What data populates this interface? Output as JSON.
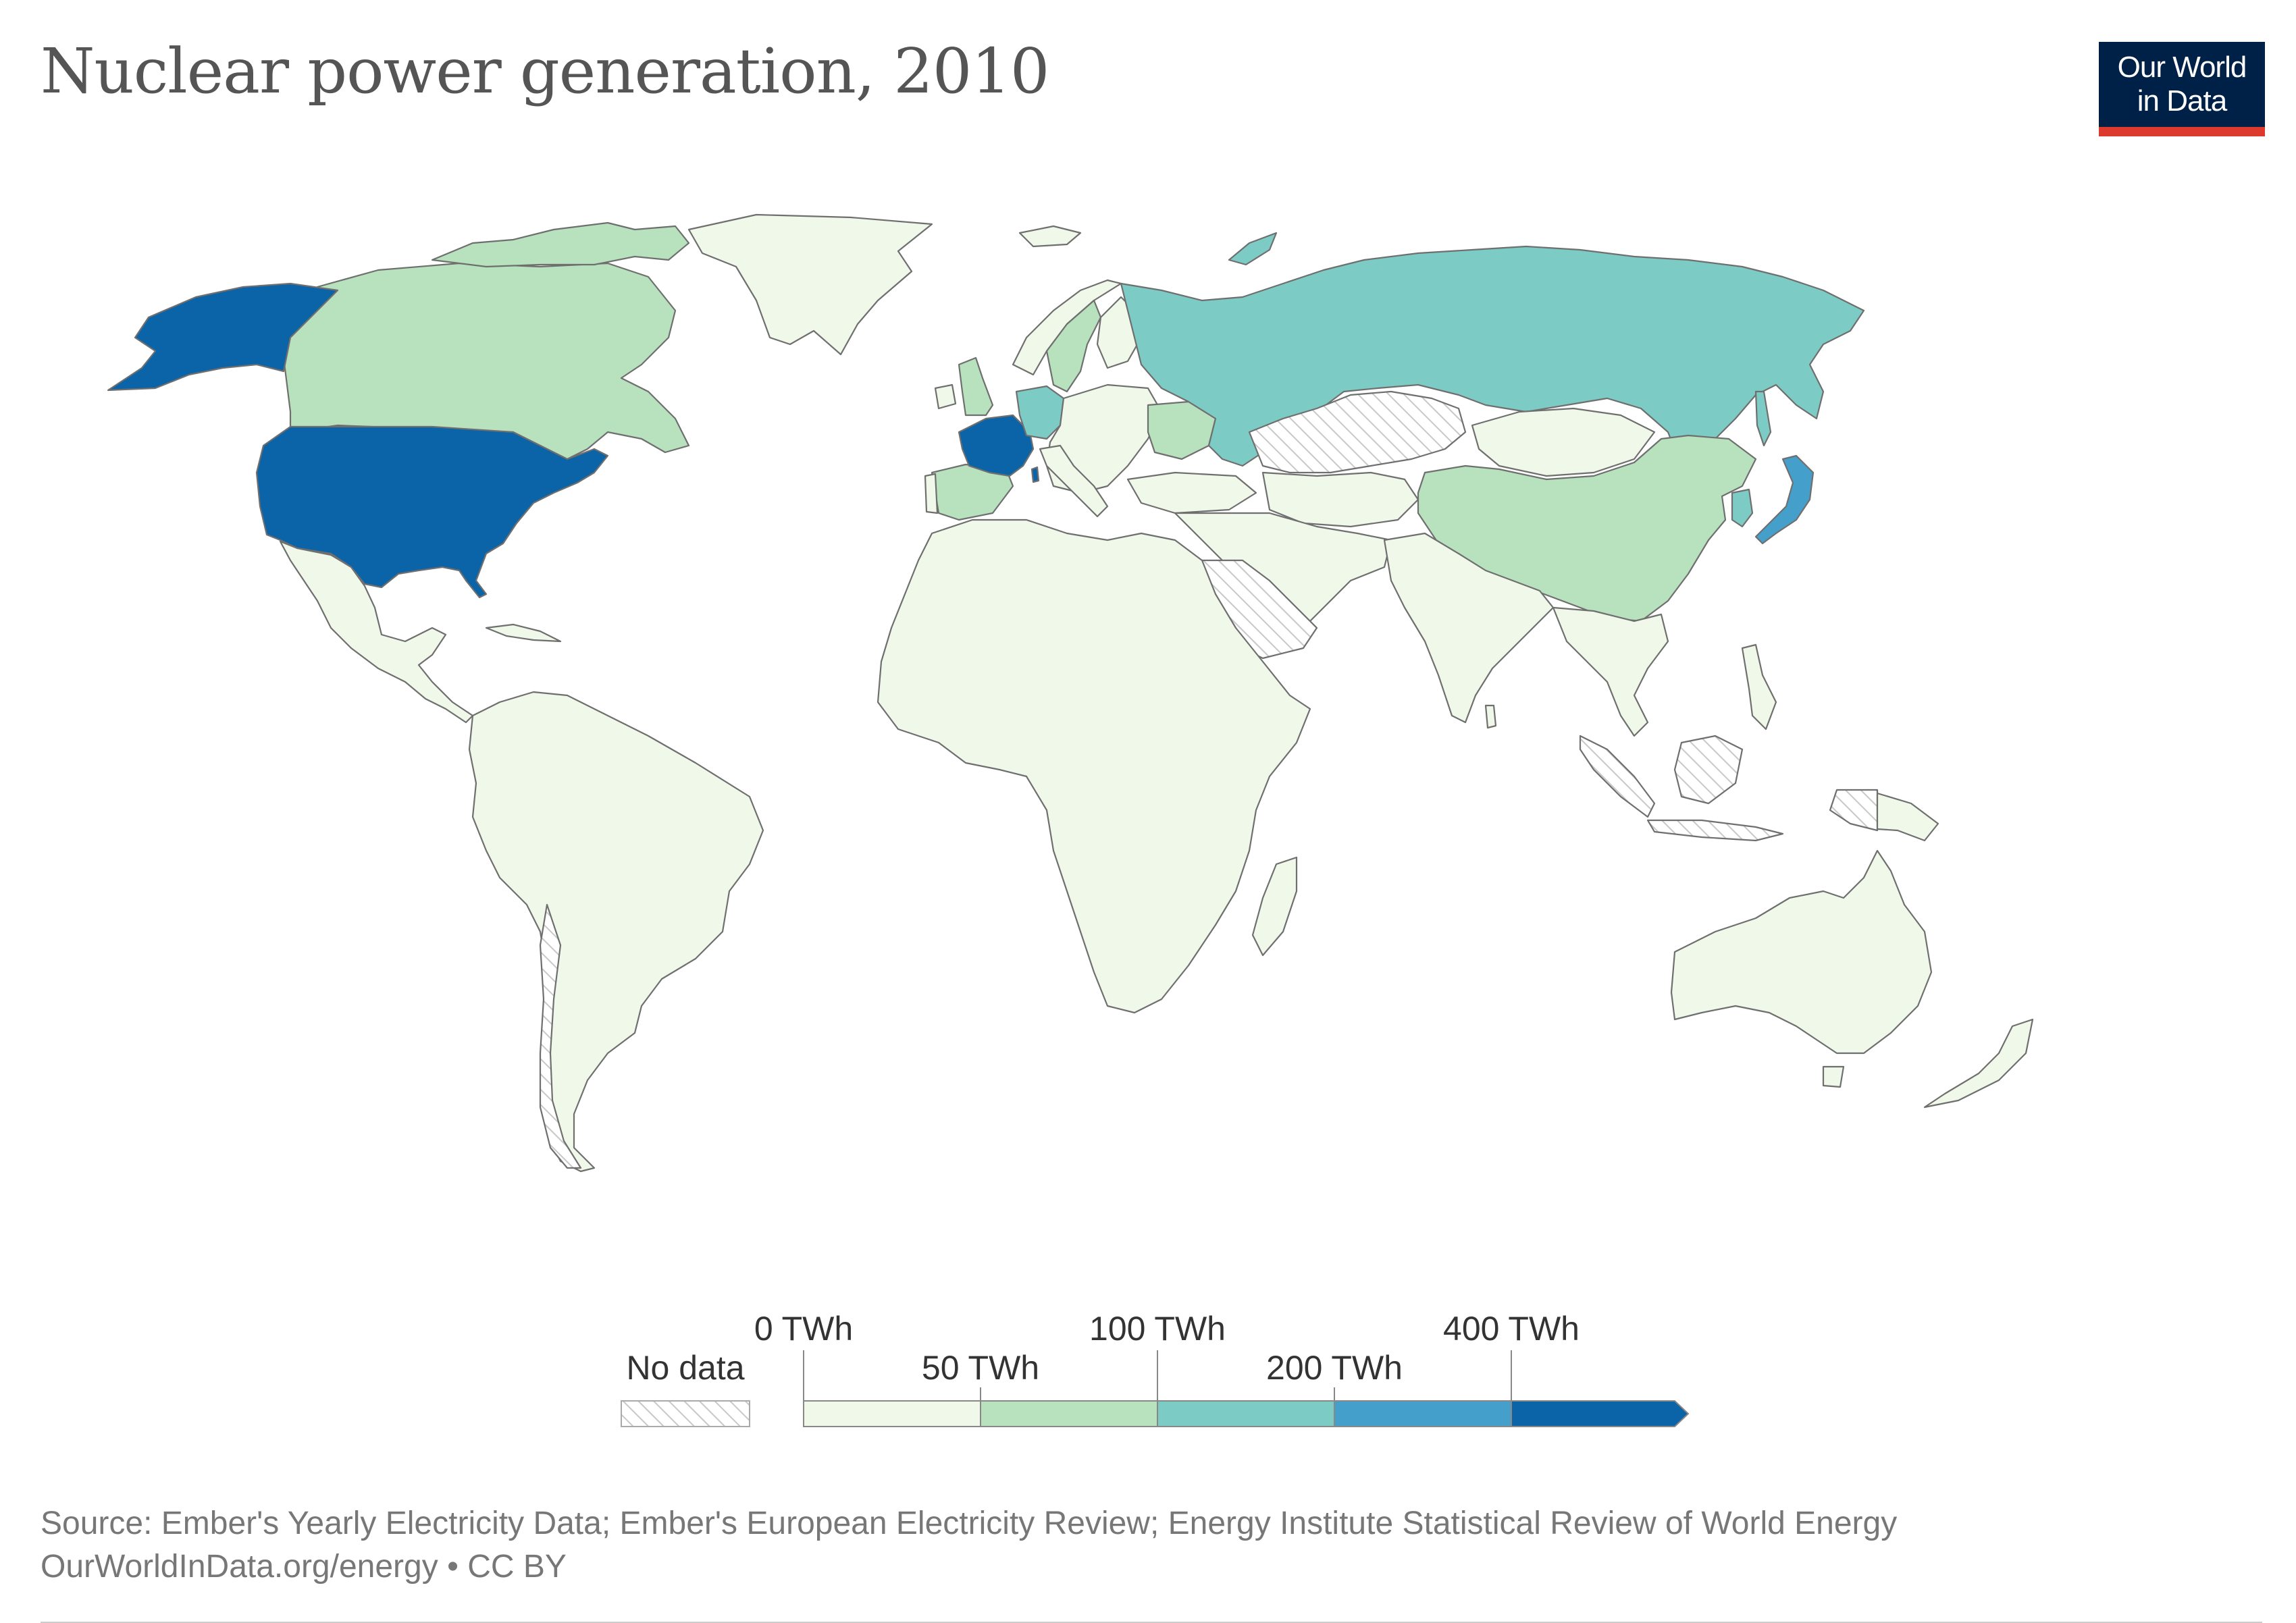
{
  "header": {
    "title": "Nuclear power generation, 2010",
    "logo_line1": "Our World",
    "logo_line2": "in Data"
  },
  "legend": {
    "no_data_label": "No data",
    "bins": [
      {
        "label": "0 TWh",
        "color": "#eff8e9"
      },
      {
        "label": "50 TWh",
        "color": "#b8e2bd"
      },
      {
        "label": "100 TWh",
        "color": "#7dcbc5"
      },
      {
        "label": "200 TWh",
        "color": "#459fcb"
      },
      {
        "label": "400 TWh",
        "color": "#0b63a8"
      }
    ],
    "no_data_color": "#d5d5d5"
  },
  "map": {
    "unit": "TWh",
    "year": "2010",
    "regions": [
      {
        "name": "United States",
        "bin": 4
      },
      {
        "name": "France",
        "bin": 4
      },
      {
        "name": "Japan",
        "bin": 3
      },
      {
        "name": "Russia",
        "bin": 2
      },
      {
        "name": "Germany",
        "bin": 2
      },
      {
        "name": "South Korea",
        "bin": 2
      },
      {
        "name": "Canada",
        "bin": 1
      },
      {
        "name": "China",
        "bin": 1
      },
      {
        "name": "Ukraine",
        "bin": 1
      },
      {
        "name": "Spain",
        "bin": 1
      },
      {
        "name": "United Kingdom",
        "bin": 1
      },
      {
        "name": "Sweden",
        "bin": 1
      },
      {
        "name": "Kazakhstan",
        "bin": "no-data"
      },
      {
        "name": "Saudi Arabia",
        "bin": "no-data"
      },
      {
        "name": "Indonesia",
        "bin": "no-data"
      },
      {
        "name": "Chile",
        "bin": "no-data"
      }
    ]
  },
  "footer": {
    "source": "Source: Ember's Yearly Electricity Data; Ember's European Electricity Review; Energy Institute Statistical Review of World Energy",
    "url": "OurWorldInData.org/energy • CC BY"
  }
}
